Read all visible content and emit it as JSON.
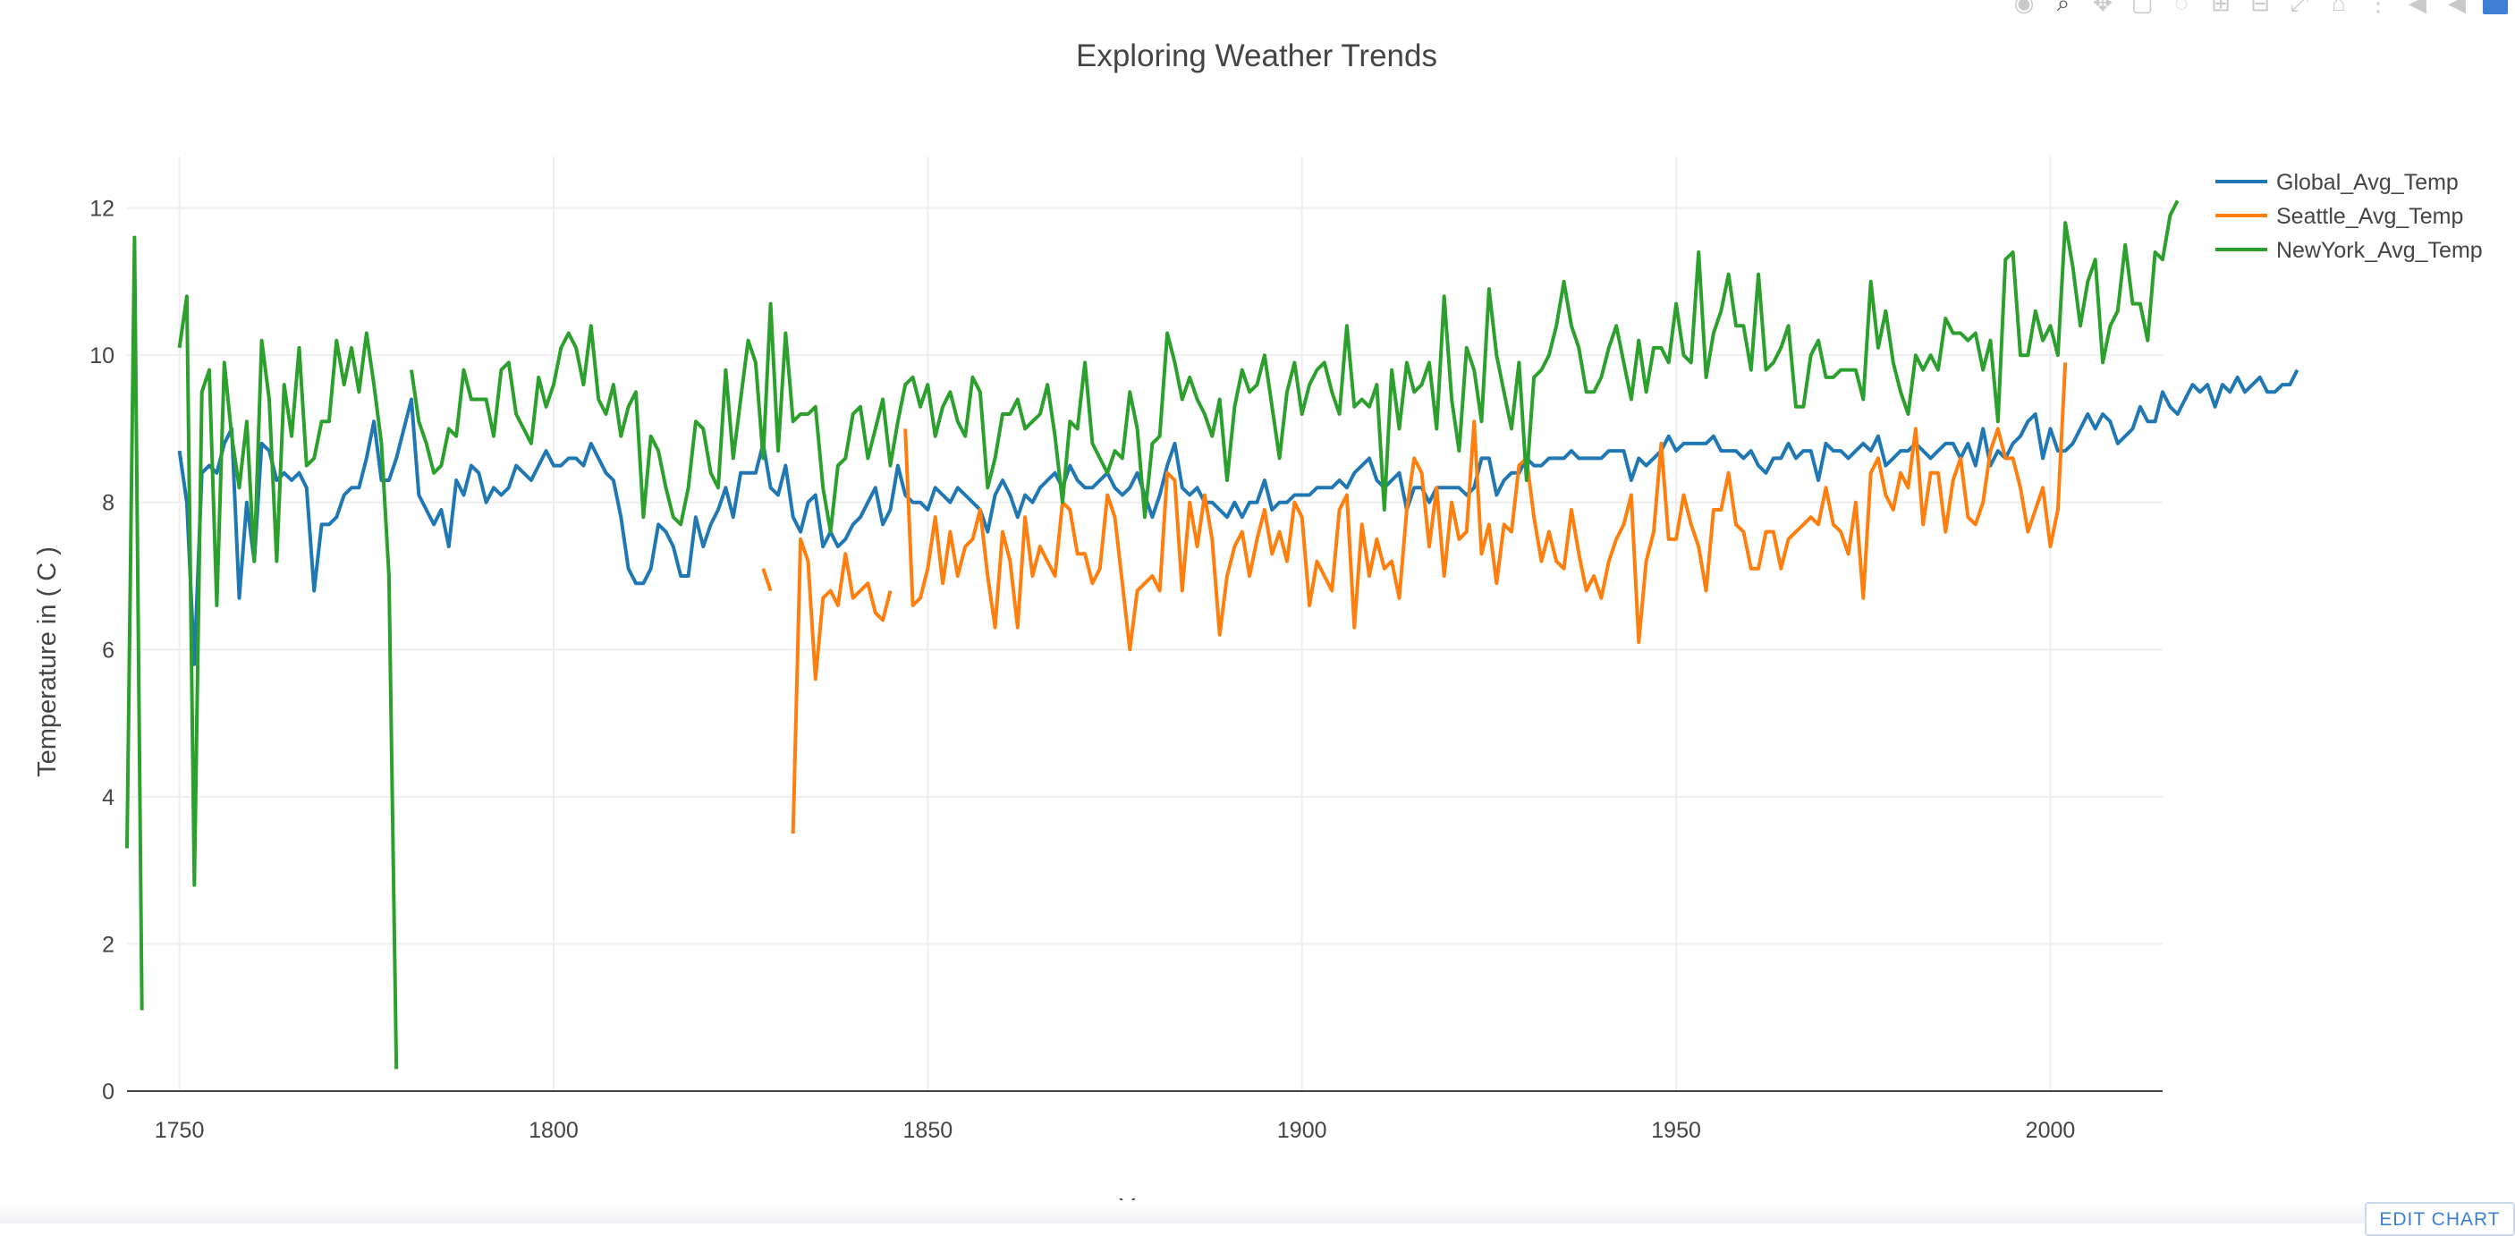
{
  "chart_data": {
    "type": "line",
    "title": "Exploring Weather Trends",
    "xlabel": "Year",
    "ylabel": "Temperature in ( C )",
    "xlim": [
      1743,
      2015
    ],
    "ylim": [
      0,
      12.7
    ],
    "x_ticks": [
      1750,
      1800,
      1850,
      1900,
      1950,
      2000
    ],
    "y_ticks": [
      0,
      2,
      4,
      6,
      8,
      10,
      12
    ],
    "grid": true,
    "legend_position": "top-right",
    "series": [
      {
        "name": "Global_Avg_Temp",
        "color": "#1f77b4",
        "x_start": 1750,
        "values": [
          8.7,
          8.0,
          5.8,
          8.4,
          8.5,
          8.4,
          8.8,
          9.0,
          6.7,
          8.0,
          7.2,
          8.8,
          8.7,
          8.3,
          8.4,
          8.3,
          8.4,
          8.2,
          6.8,
          7.7,
          7.7,
          7.8,
          8.1,
          8.2,
          8.2,
          8.6,
          9.1,
          8.3,
          8.3,
          8.6,
          9.0,
          9.4,
          8.1,
          7.9,
          7.7,
          7.9,
          7.4,
          8.3,
          8.1,
          8.5,
          8.4,
          8.0,
          8.2,
          8.1,
          8.2,
          8.5,
          8.4,
          8.3,
          8.5,
          8.7,
          8.5,
          8.5,
          8.6,
          8.6,
          8.5,
          8.8,
          8.6,
          8.4,
          8.3,
          7.8,
          7.1,
          6.9,
          6.9,
          7.1,
          7.7,
          7.6,
          7.4,
          7.0,
          7.0,
          7.8,
          7.4,
          7.7,
          7.9,
          8.2,
          7.8,
          8.4,
          8.4,
          8.4,
          8.8,
          8.2,
          8.1,
          8.5,
          7.8,
          7.6,
          8.0,
          8.1,
          7.4,
          7.6,
          7.4,
          7.5,
          7.7,
          7.8,
          8.0,
          8.2,
          7.7,
          7.9,
          8.5,
          8.1,
          8.0,
          8.0,
          7.9,
          8.2,
          8.1,
          8.0,
          8.2,
          8.1,
          8.0,
          7.9,
          7.6,
          8.1,
          8.3,
          8.1,
          7.8,
          8.1,
          8.0,
          8.2,
          8.3,
          8.4,
          8.2,
          8.5,
          8.3,
          8.2,
          8.2,
          8.3,
          8.4,
          8.2,
          8.1,
          8.2,
          8.4,
          8.1,
          7.8,
          8.1,
          8.5,
          8.8,
          8.2,
          8.1,
          8.2,
          8.0,
          8.0,
          7.9,
          7.8,
          8.0,
          7.8,
          8.0,
          8.0,
          8.3,
          7.9,
          8.0,
          8.0,
          8.1,
          8.1,
          8.1,
          8.2,
          8.2,
          8.2,
          8.3,
          8.2,
          8.4,
          8.5,
          8.6,
          8.3,
          8.2,
          8.3,
          8.4,
          7.9,
          8.2,
          8.2,
          8.0,
          8.2,
          8.2,
          8.2,
          8.2,
          8.1,
          8.2,
          8.6,
          8.6,
          8.1,
          8.3,
          8.4,
          8.4,
          8.6,
          8.5,
          8.5,
          8.6,
          8.6,
          8.6,
          8.7,
          8.6,
          8.6,
          8.6,
          8.6,
          8.7,
          8.7,
          8.7,
          8.3,
          8.6,
          8.5,
          8.6,
          8.7,
          8.9,
          8.7,
          8.8,
          8.8,
          8.8,
          8.8,
          8.9,
          8.7,
          8.7,
          8.7,
          8.6,
          8.7,
          8.5,
          8.4,
          8.6,
          8.6,
          8.8,
          8.6,
          8.7,
          8.7,
          8.3,
          8.8,
          8.7,
          8.7,
          8.6,
          8.7,
          8.8,
          8.7,
          8.9,
          8.5,
          8.6,
          8.7,
          8.7,
          8.8,
          8.7,
          8.6,
          8.7,
          8.8,
          8.8,
          8.6,
          8.8,
          8.5,
          9.0,
          8.5,
          8.7,
          8.6,
          8.8,
          8.9,
          9.1,
          9.2,
          8.6,
          9.0,
          8.7,
          8.7,
          8.8,
          9.0,
          9.2,
          9.0,
          9.2,
          9.1,
          8.8,
          8.9,
          9.0,
          9.3,
          9.1,
          9.1,
          9.5,
          9.3,
          9.2,
          9.4,
          9.6,
          9.5,
          9.6,
          9.3,
          9.6,
          9.5,
          9.7,
          9.5,
          9.6,
          9.7,
          9.5,
          9.5,
          9.6,
          9.6,
          9.8
        ],
        "values_note": "annual values 1750-2015"
      },
      {
        "name": "Seattle_Avg_Temp",
        "color": "#ff7f0e",
        "segments": [
          {
            "x_start": 1828,
            "values": [
              7.1,
              6.8
            ]
          },
          {
            "x_start": 1832,
            "values": [
              3.5,
              7.5,
              7.2,
              5.6,
              6.7,
              6.8,
              6.6,
              7.3,
              6.7,
              6.8,
              6.9,
              6.5,
              6.4,
              6.8
            ]
          },
          {
            "x_start": 1847,
            "values": [
              9.0,
              6.6,
              6.7,
              7.1,
              7.8,
              6.9,
              7.6,
              7.0,
              7.4,
              7.5,
              7.9,
              7.0,
              6.3,
              7.6,
              7.2,
              6.3,
              7.8,
              7.0,
              7.4,
              7.2,
              7.0,
              8.0,
              7.9,
              7.3,
              7.3,
              6.9,
              7.1,
              8.1,
              7.8,
              6.9,
              6.0,
              6.8,
              6.9,
              7.0,
              6.8,
              8.4,
              8.3,
              6.8,
              8.0,
              7.4,
              8.1,
              7.5,
              6.2,
              7.0,
              7.4,
              7.6,
              7.0,
              7.5,
              7.9,
              7.3,
              7.6,
              7.2,
              8.0,
              7.8,
              6.6,
              7.2,
              7.0,
              6.8,
              7.9,
              8.1,
              6.3,
              7.7,
              7.0,
              7.5,
              7.1,
              7.2,
              6.7,
              7.9,
              8.6,
              8.4,
              7.4,
              8.2,
              7.0,
              8.0,
              7.5,
              7.6,
              9.1,
              7.3,
              7.7,
              6.9,
              7.7,
              7.6,
              8.5,
              8.6,
              7.8,
              7.2,
              7.6,
              7.2,
              7.1,
              7.9,
              7.3,
              6.8,
              7.0,
              6.7,
              7.2,
              7.5,
              7.7,
              8.1,
              6.1,
              7.2,
              7.6,
              8.8,
              7.5,
              7.5,
              8.1,
              7.7,
              7.4,
              6.8,
              7.9,
              7.9,
              8.4,
              7.7,
              7.6,
              7.1,
              7.1,
              7.6,
              7.6,
              7.1,
              7.5,
              7.6,
              7.7,
              7.8,
              7.7,
              8.2,
              7.7,
              7.6,
              7.3,
              8.0,
              6.7,
              8.4,
              8.6,
              8.1,
              7.9,
              8.4,
              8.2,
              9.0,
              7.7,
              8.4,
              8.4,
              7.6,
              8.3,
              8.6,
              7.8,
              7.7,
              8.0,
              8.7,
              9.0,
              8.6,
              8.6,
              8.2,
              7.6,
              7.9,
              8.2,
              7.4,
              7.9,
              9.9
            ]
          }
        ]
      },
      {
        "name": "NewYork_Avg_Temp",
        "color": "#2ca02c",
        "segments": [
          {
            "x_start": 1743,
            "values": [
              3.3,
              11.6,
              1.1
            ]
          },
          {
            "x_start": 1750,
            "values": [
              10.1,
              10.8,
              2.8,
              9.5,
              9.8,
              6.6,
              9.9,
              8.9,
              8.2,
              9.1,
              7.2,
              10.2,
              9.4,
              7.2,
              9.6,
              8.9,
              10.1,
              8.5,
              8.6,
              9.1,
              9.1,
              10.2,
              9.6,
              10.1,
              9.5,
              10.3,
              9.6,
              8.8,
              7.0,
              0.3
            ]
          },
          {
            "x_start": 1781,
            "values": [
              9.8,
              9.1,
              8.8,
              8.4,
              8.5,
              9.0,
              8.9,
              9.8,
              9.4,
              9.4,
              9.4,
              8.9,
              9.8,
              9.9,
              9.2,
              9.0,
              8.8,
              9.7,
              9.3,
              9.6,
              10.1,
              10.3,
              10.1,
              9.6,
              10.4,
              9.4,
              9.2,
              9.6,
              8.9,
              9.3,
              9.5,
              7.8,
              8.9,
              8.7,
              8.2,
              7.8,
              7.7,
              8.2,
              9.1,
              9.0,
              8.4,
              8.2,
              9.8,
              8.6,
              9.4,
              10.2,
              9.9,
              8.6,
              10.7,
              8.7,
              10.3,
              9.1,
              9.2,
              9.2,
              9.3,
              8.2,
              7.6,
              8.5,
              8.6,
              9.2,
              9.3,
              8.6,
              9.0,
              9.4,
              8.5,
              9.1,
              9.6,
              9.7,
              9.3,
              9.6,
              8.9,
              9.3,
              9.5,
              9.1,
              8.9,
              9.7,
              9.5,
              8.2,
              8.6,
              9.2,
              9.2,
              9.4,
              9.0,
              9.1,
              9.2,
              9.6,
              8.9,
              8.0,
              9.1,
              9.0,
              9.9,
              8.8,
              8.6,
              8.4,
              8.7,
              8.6,
              9.5,
              9.0,
              7.8,
              8.8,
              8.9,
              10.3,
              9.9,
              9.4,
              9.7,
              9.4,
              9.2,
              8.9,
              9.4,
              8.3,
              9.3,
              9.8,
              9.5,
              9.6,
              10.0,
              9.3,
              8.6,
              9.5,
              9.9,
              9.2,
              9.6,
              9.8,
              9.9,
              9.5,
              9.2,
              10.4,
              9.3,
              9.4,
              9.3,
              9.6,
              7.9,
              9.8,
              9.0,
              9.9,
              9.5,
              9.6,
              9.9,
              9.0,
              10.8,
              9.4,
              8.7,
              10.1,
              9.8,
              9.1,
              10.9,
              10.0,
              9.5,
              9.0,
              9.9,
              8.3,
              9.7,
              9.8,
              10.0,
              10.4,
              11.0,
              10.4,
              10.1,
              9.5,
              9.5,
              9.7,
              10.1,
              10.4,
              9.9,
              9.4,
              10.2,
              9.5,
              10.1,
              10.1,
              9.9,
              10.7,
              10.0,
              9.9,
              11.4,
              9.7,
              10.3,
              10.6,
              11.1,
              10.4,
              10.4,
              9.8,
              11.1,
              9.8,
              9.9,
              10.1,
              10.4,
              9.3,
              9.3,
              10.0,
              10.2,
              9.7,
              9.7,
              9.8,
              9.8,
              9.8,
              9.4,
              11.0,
              10.1,
              10.6,
              9.9,
              9.5,
              9.2,
              10.0,
              9.8,
              10.0,
              9.8,
              10.5,
              10.3,
              10.3,
              10.2,
              10.3,
              9.8,
              10.2,
              9.1,
              11.3,
              11.4,
              10.0,
              10.0,
              10.6,
              10.2,
              10.4,
              10.0,
              11.8,
              11.2,
              10.4,
              11.0,
              11.3,
              9.9,
              10.4,
              10.6,
              11.5,
              10.7,
              10.7,
              10.2,
              11.4,
              11.3,
              11.9,
              12.1
            ]
          }
        ]
      }
    ]
  },
  "modebar": {
    "icons": [
      "camera-icon",
      "zoom-icon",
      "pan-icon",
      "box-select-icon",
      "lasso-icon",
      "zoom-in-icon",
      "zoom-out-icon",
      "autoscale-icon",
      "reset-axes-icon",
      "spike-lines-icon",
      "hover-closest-icon",
      "hover-compare-icon",
      "plotly-logo"
    ]
  },
  "edit_button": {
    "label": "EDIT CHART"
  }
}
